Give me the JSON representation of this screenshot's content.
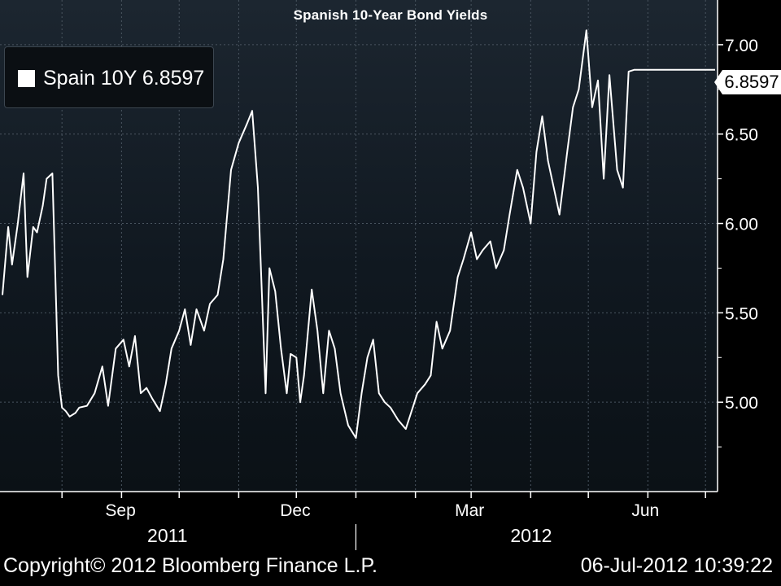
{
  "chart_data": {
    "type": "line",
    "title": "Spanish 10-Year Bond Yields",
    "legend": {
      "label": "Spain 10Y 6.8597",
      "swatch_color": "#ffffff",
      "placement": "top-left"
    },
    "last_value": "6.8597",
    "ylim": [
      4.5,
      7.25
    ],
    "yticks": [
      5.0,
      5.5,
      6.0,
      6.5,
      7.0
    ],
    "ytick_labels": [
      "5.00",
      "5.50",
      "6.00",
      "6.50",
      "7.00"
    ],
    "y_axis_position": "right",
    "grid": true,
    "x_start": "2011-07-01",
    "x_end": "2012-07-06",
    "month_ticks": [
      {
        "date": "2011-08-01",
        "label": ""
      },
      {
        "date": "2011-09-01",
        "label": "Sep"
      },
      {
        "date": "2011-10-01",
        "label": ""
      },
      {
        "date": "2011-11-01",
        "label": ""
      },
      {
        "date": "2011-12-01",
        "label": "Dec"
      },
      {
        "date": "2012-01-01",
        "label": ""
      },
      {
        "date": "2012-02-01",
        "label": ""
      },
      {
        "date": "2012-03-01",
        "label": "Mar"
      },
      {
        "date": "2012-04-01",
        "label": ""
      },
      {
        "date": "2012-05-01",
        "label": ""
      },
      {
        "date": "2012-06-01",
        "label": "Jun"
      },
      {
        "date": "2012-07-01",
        "label": ""
      }
    ],
    "year_labels": [
      {
        "label": "2011",
        "date": "2011-09-25"
      },
      {
        "label": "2012",
        "date": "2012-04-01"
      }
    ],
    "year_divider": "2012-01-01",
    "series": [
      {
        "name": "Spain 10Y",
        "color": "#ffffff",
        "x": [
          "2011-07-01",
          "2011-07-04",
          "2011-07-06",
          "2011-07-09",
          "2011-07-12",
          "2011-07-14",
          "2011-07-17",
          "2011-07-19",
          "2011-07-22",
          "2011-07-24",
          "2011-07-27",
          "2011-07-30",
          "2011-08-01",
          "2011-08-03",
          "2011-08-05",
          "2011-08-08",
          "2011-08-10",
          "2011-08-14",
          "2011-08-18",
          "2011-08-22",
          "2011-08-25",
          "2011-08-29",
          "2011-09-02",
          "2011-09-05",
          "2011-09-08",
          "2011-09-11",
          "2011-09-14",
          "2011-09-17",
          "2011-09-21",
          "2011-09-24",
          "2011-09-27",
          "2011-10-01",
          "2011-10-04",
          "2011-10-07",
          "2011-10-10",
          "2011-10-14",
          "2011-10-17",
          "2011-10-21",
          "2011-10-24",
          "2011-10-28",
          "2011-11-01",
          "2011-11-05",
          "2011-11-08",
          "2011-11-11",
          "2011-11-15",
          "2011-11-17",
          "2011-11-20",
          "2011-11-23",
          "2011-11-26",
          "2011-11-28",
          "2011-12-01",
          "2011-12-03",
          "2011-12-05",
          "2011-12-09",
          "2011-12-12",
          "2011-12-15",
          "2011-12-18",
          "2011-12-21",
          "2011-12-24",
          "2011-12-28",
          "2012-01-01",
          "2012-01-04",
          "2012-01-07",
          "2012-01-10",
          "2012-01-13",
          "2012-01-16",
          "2012-01-19",
          "2012-01-23",
          "2012-01-27",
          "2012-01-30",
          "2012-02-02",
          "2012-02-06",
          "2012-02-09",
          "2012-02-12",
          "2012-02-15",
          "2012-02-19",
          "2012-02-23",
          "2012-02-26",
          "2012-03-01",
          "2012-03-04",
          "2012-03-07",
          "2012-03-11",
          "2012-03-14",
          "2012-03-18",
          "2012-03-21",
          "2012-03-25",
          "2012-03-28",
          "2012-04-01",
          "2012-04-04",
          "2012-04-07",
          "2012-04-10",
          "2012-04-13",
          "2012-04-16",
          "2012-04-20",
          "2012-04-23",
          "2012-04-26",
          "2012-04-30",
          "2012-05-03",
          "2012-05-06",
          "2012-05-09",
          "2012-05-12",
          "2012-05-16",
          "2012-05-19",
          "2012-05-22",
          "2012-05-25",
          "2012-05-29",
          "2012-06-01",
          "2012-06-04",
          "2012-06-06",
          "2012-06-08",
          "2012-06-11",
          "2012-06-13",
          "2012-06-15",
          "2012-06-18",
          "2012-06-20",
          "2012-06-22",
          "2012-06-25",
          "2012-06-28",
          "2012-07-01",
          "2012-07-03",
          "2012-07-06"
        ],
        "y": [
          5.6,
          5.98,
          5.77,
          6.0,
          6.28,
          5.7,
          5.98,
          5.95,
          6.1,
          6.25,
          6.28,
          5.15,
          4.97,
          4.95,
          4.92,
          4.94,
          4.97,
          4.98,
          5.05,
          5.2,
          4.98,
          5.3,
          5.35,
          5.2,
          5.37,
          5.05,
          5.08,
          5.02,
          4.95,
          5.1,
          5.3,
          5.4,
          5.52,
          5.32,
          5.52,
          5.4,
          5.55,
          5.6,
          5.8,
          6.3,
          6.45,
          6.55,
          6.63,
          6.2,
          5.05,
          5.75,
          5.62,
          5.3,
          5.05,
          5.27,
          5.25,
          5.0,
          5.15,
          5.63,
          5.4,
          5.05,
          5.4,
          5.3,
          5.05,
          4.87,
          4.8,
          5.05,
          5.25,
          5.35,
          5.05,
          5.0,
          4.97,
          4.9,
          4.85,
          4.95,
          5.05,
          5.1,
          5.15,
          5.45,
          5.3,
          5.4,
          5.7,
          5.8,
          5.95,
          5.8,
          5.85,
          5.9,
          5.75,
          5.85,
          6.05,
          6.3,
          6.2,
          6.0,
          6.4,
          6.6,
          6.35,
          6.2,
          6.05,
          6.4,
          6.65,
          6.75,
          7.08,
          6.65,
          6.8,
          6.25,
          6.83,
          6.3,
          6.2,
          6.85,
          6.86,
          6.86,
          6.86,
          6.86,
          6.86,
          6.86,
          6.86,
          6.86,
          6.86,
          6.86,
          6.86,
          6.86,
          6.86,
          6.86,
          6.86,
          6.86,
          6.86
        ]
      }
    ]
  },
  "footer": {
    "copyright": "Copyright© 2012 Bloomberg Finance L.P.",
    "timestamp": "06-Jul-2012 10:39:22"
  }
}
